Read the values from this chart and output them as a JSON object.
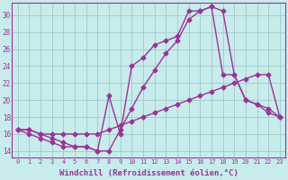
{
  "bg_color": "#c8ecec",
  "grid_color": "#a0c8c8",
  "line_color": "#993399",
  "marker": "D",
  "markersize": 2.5,
  "linewidth": 1.0,
  "xlabel": "Windchill (Refroidissement éolien,°C)",
  "xlabel_fontsize": 6.5,
  "xtick_labels": [
    "0",
    "1",
    "2",
    "3",
    "4",
    "5",
    "6",
    "7",
    "8",
    "9",
    "10",
    "11",
    "12",
    "13",
    "14",
    "15",
    "16",
    "17",
    "18",
    "19",
    "20",
    "21",
    "22",
    "23"
  ],
  "xticks": [
    0,
    1,
    2,
    3,
    4,
    5,
    6,
    7,
    8,
    9,
    10,
    11,
    12,
    13,
    14,
    15,
    16,
    17,
    18,
    19,
    20,
    21,
    22,
    23
  ],
  "yticks": [
    14,
    16,
    18,
    20,
    22,
    24,
    26,
    28,
    30
  ],
  "xlim": [
    -0.5,
    23.5
  ],
  "ylim": [
    13.2,
    31.5
  ],
  "series1_x": [
    0,
    1,
    2,
    3,
    4,
    5,
    6,
    7,
    8,
    9,
    10,
    11,
    12,
    13,
    14,
    15,
    16,
    17,
    18,
    19,
    20,
    21,
    22,
    23
  ],
  "series1_y": [
    16.5,
    16.5,
    16.0,
    16.0,
    16.0,
    16.0,
    16.0,
    16.0,
    16.5,
    17.0,
    17.5,
    18.0,
    18.5,
    19.0,
    19.5,
    20.0,
    20.5,
    21.0,
    21.5,
    22.0,
    22.5,
    23.0,
    23.0,
    18.0
  ],
  "series2_x": [
    0,
    1,
    2,
    3,
    4,
    5,
    6,
    7,
    8,
    9,
    10,
    11,
    12,
    13,
    14,
    15,
    16,
    17,
    18,
    19,
    20,
    21,
    22,
    23
  ],
  "series2_y": [
    16.5,
    16.0,
    15.5,
    15.0,
    14.5,
    14.5,
    14.5,
    14.0,
    14.0,
    16.5,
    19.0,
    21.5,
    23.5,
    25.5,
    27.0,
    29.5,
    30.5,
    31.0,
    30.5,
    23.0,
    20.0,
    19.5,
    19.0,
    18.0
  ],
  "series3_x": [
    0,
    1,
    2,
    3,
    4,
    5,
    6,
    7,
    8,
    9,
    10,
    11,
    12,
    13,
    14,
    15,
    16,
    17,
    18,
    19,
    20,
    21,
    22,
    23
  ],
  "series3_y": [
    16.5,
    16.5,
    16.0,
    15.5,
    15.0,
    14.5,
    14.5,
    14.0,
    20.5,
    16.0,
    24.0,
    25.0,
    26.5,
    27.0,
    27.5,
    30.5,
    30.5,
    31.0,
    23.0,
    23.0,
    20.0,
    19.5,
    18.5,
    18.0
  ]
}
